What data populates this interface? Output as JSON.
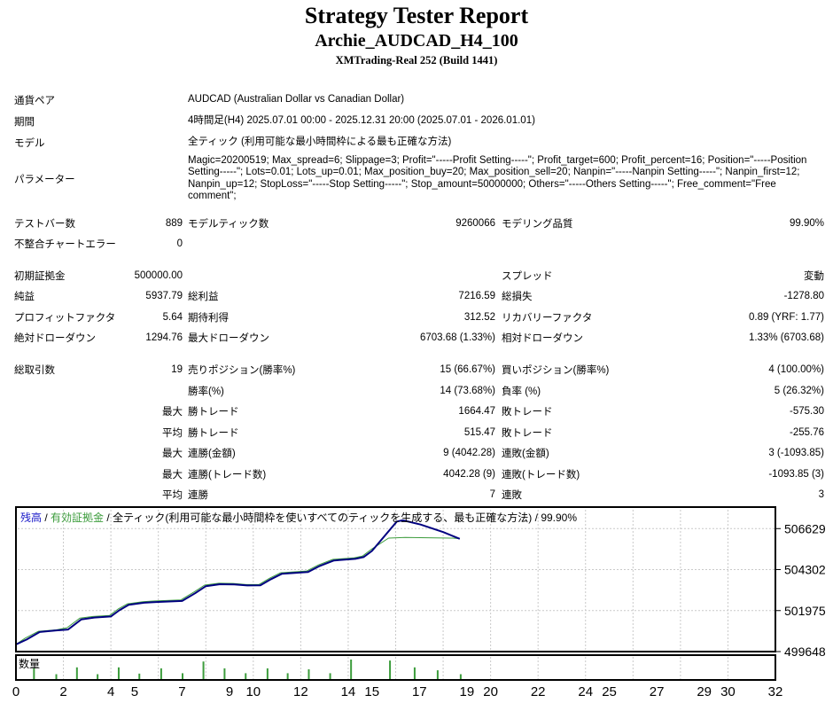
{
  "report": {
    "title": "Strategy Tester Report",
    "ea_name": "Archie_AUDCAD_H4_100",
    "server": "XMTrading-Real 252 (Build 1441)"
  },
  "stats": {
    "info": [
      {
        "label": "通貨ペア",
        "value": "AUDCAD (Australian Dollar vs Canadian Dollar)"
      },
      {
        "label": "期間",
        "value": "4時間足(H4) 2025.07.01 00:00 - 2025.12.31 20:00 (2025.07.01 - 2026.01.01)"
      },
      {
        "label": "モデル",
        "value": "全ティック (利用可能な最小時間枠による最も正確な方法)"
      },
      {
        "label": "パラメーター",
        "value": "Magic=20200519; Max_spread=6; Slippage=3; Profit=\"-----Profit Setting-----\"; Profit_target=600; Profit_percent=16; Position=\"-----Position Setting-----\"; Lots=0.01; Lots_up=0.01; Max_position_buy=20; Max_position_sell=20; Nanpin=\"-----Nanpin Setting-----\"; Nanpin_first=12; Nanpin_up=12; StopLoss=\"-----Stop Setting-----\"; Stop_amount=50000000; Others=\"-----Others Setting-----\"; Free_comment=\"Free comment\";"
      }
    ],
    "rows": [
      [
        "テストバー数",
        "889",
        "モデルティック数",
        "9260066",
        "モデリング品質",
        "99.90%"
      ],
      [
        "不整合チャートエラー",
        "0",
        "",
        "",
        "",
        ""
      ],
      [
        "初期証拠金",
        "500000.00",
        "",
        "",
        "スプレッド",
        "変動"
      ],
      [
        "純益",
        "5937.79",
        "総利益",
        "7216.59",
        "総損失",
        "-1278.80"
      ],
      [
        "プロフィットファクタ",
        "5.64",
        "期待利得",
        "312.52",
        "リカバリーファクタ",
        "0.89 (YRF: 1.77)"
      ],
      [
        "絶対ドローダウン",
        "1294.76",
        "最大ドローダウン",
        "6703.68 (1.33%)",
        "相対ドローダウン",
        "1.33% (6703.68)"
      ],
      [
        "総取引数",
        "19",
        "売りポジション(勝率%)",
        "15 (66.67%)",
        "買いポジション(勝率%)",
        "4 (100.00%)"
      ],
      [
        "",
        "",
        "勝率(%)",
        "14 (73.68%)",
        "負率 (%)",
        "5 (26.32%)"
      ],
      [
        "",
        "最大",
        "勝トレード",
        "1664.47",
        "敗トレード",
        "-575.30"
      ],
      [
        "",
        "平均",
        "勝トレード",
        "515.47",
        "敗トレード",
        "-255.76"
      ],
      [
        "",
        "最大",
        "連勝(金額)",
        "9 (4042.28)",
        "連敗(金額)",
        "3 (-1093.85)"
      ],
      [
        "",
        "最大",
        "連勝(トレード数)",
        "4042.28 (9)",
        "連敗(トレード数)",
        "-1093.85 (3)"
      ],
      [
        "",
        "平均",
        "連勝",
        "7",
        "連敗",
        "3"
      ]
    ]
  },
  "chart_data": {
    "type": "line",
    "legend": {
      "balance_label": "残高",
      "equity_label": "有効証拠金",
      "model_label": "全ティック(利用可能な最小時間枠を使いすべてのティックを生成する、最も正確な方法)",
      "quality": "99.90%",
      "sep": " / ",
      "balance_color": "#1818c8",
      "equity_color": "#3c9c3c"
    },
    "x_range": [
      0,
      32
    ],
    "y_range": [
      499648,
      507800
    ],
    "grid_x_step": 2,
    "y_ticks": [
      506629,
      504302,
      501975,
      499648
    ],
    "x_ticks": [
      0,
      2,
      4,
      5,
      7,
      9,
      10,
      12,
      14,
      15,
      17,
      19,
      20,
      22,
      24,
      25,
      27,
      29,
      30,
      32
    ],
    "series": [
      {
        "name": "残高",
        "color": "#000080",
        "width": 2,
        "points": [
          [
            0,
            500050
          ],
          [
            0.45,
            500330
          ],
          [
            1.0,
            500760
          ],
          [
            1.7,
            500850
          ],
          [
            2.2,
            500900
          ],
          [
            2.75,
            501470
          ],
          [
            3.3,
            501580
          ],
          [
            4.0,
            501640
          ],
          [
            4.35,
            501990
          ],
          [
            4.75,
            502300
          ],
          [
            5.4,
            502420
          ],
          [
            5.9,
            502460
          ],
          [
            7.0,
            502520
          ],
          [
            7.55,
            502960
          ],
          [
            8.0,
            503360
          ],
          [
            8.6,
            503470
          ],
          [
            9.2,
            503460
          ],
          [
            9.75,
            503400
          ],
          [
            10.3,
            503410
          ],
          [
            10.75,
            503760
          ],
          [
            11.2,
            504060
          ],
          [
            12.3,
            504160
          ],
          [
            12.8,
            504510
          ],
          [
            13.4,
            504820
          ],
          [
            14.3,
            504910
          ],
          [
            14.65,
            505010
          ],
          [
            15.0,
            505360
          ],
          [
            16.05,
            507030
          ],
          [
            16.3,
            507100
          ],
          [
            17.05,
            506860
          ],
          [
            18.0,
            506430
          ],
          [
            18.7,
            506050
          ]
        ]
      },
      {
        "name": "有効証拠金",
        "color": "#3c9c3c",
        "width": 1,
        "points": [
          [
            0,
            500060
          ],
          [
            0.4,
            500420
          ],
          [
            0.95,
            500800
          ],
          [
            1.7,
            500880
          ],
          [
            2.15,
            501000
          ],
          [
            2.7,
            501550
          ],
          [
            3.25,
            501640
          ],
          [
            3.95,
            501700
          ],
          [
            4.3,
            502060
          ],
          [
            4.7,
            502360
          ],
          [
            5.35,
            502480
          ],
          [
            5.85,
            502520
          ],
          [
            6.95,
            502580
          ],
          [
            7.5,
            503030
          ],
          [
            7.95,
            503420
          ],
          [
            8.55,
            503530
          ],
          [
            9.15,
            503520
          ],
          [
            9.7,
            503450
          ],
          [
            10.25,
            503460
          ],
          [
            10.7,
            503820
          ],
          [
            11.15,
            504120
          ],
          [
            12.25,
            504220
          ],
          [
            12.75,
            504570
          ],
          [
            13.35,
            504880
          ],
          [
            14.25,
            504970
          ],
          [
            14.6,
            505070
          ],
          [
            14.95,
            505430
          ],
          [
            15.7,
            506090
          ],
          [
            16.4,
            506130
          ],
          [
            18.4,
            506090
          ],
          [
            18.7,
            506060
          ]
        ]
      }
    ],
    "volume": {
      "label": "数量",
      "color": "#3c9c3c",
      "bars": [
        {
          "x": 0.76,
          "h": 0.55
        },
        {
          "x": 1.7,
          "h": 0.25
        },
        {
          "x": 2.57,
          "h": 0.6
        },
        {
          "x": 3.44,
          "h": 0.25
        },
        {
          "x": 4.33,
          "h": 0.6
        },
        {
          "x": 5.2,
          "h": 0.28
        },
        {
          "x": 6.12,
          "h": 0.55
        },
        {
          "x": 7.02,
          "h": 0.3
        },
        {
          "x": 7.9,
          "h": 0.9
        },
        {
          "x": 8.79,
          "h": 0.55
        },
        {
          "x": 9.68,
          "h": 0.3
        },
        {
          "x": 10.6,
          "h": 0.55
        },
        {
          "x": 11.45,
          "h": 0.3
        },
        {
          "x": 12.34,
          "h": 0.5
        },
        {
          "x": 13.24,
          "h": 0.3
        },
        {
          "x": 14.12,
          "h": 1.0
        },
        {
          "x": 15.76,
          "h": 0.95
        },
        {
          "x": 16.8,
          "h": 0.6
        },
        {
          "x": 17.77,
          "h": 0.45
        },
        {
          "x": 18.74,
          "h": 0.25
        }
      ]
    }
  }
}
